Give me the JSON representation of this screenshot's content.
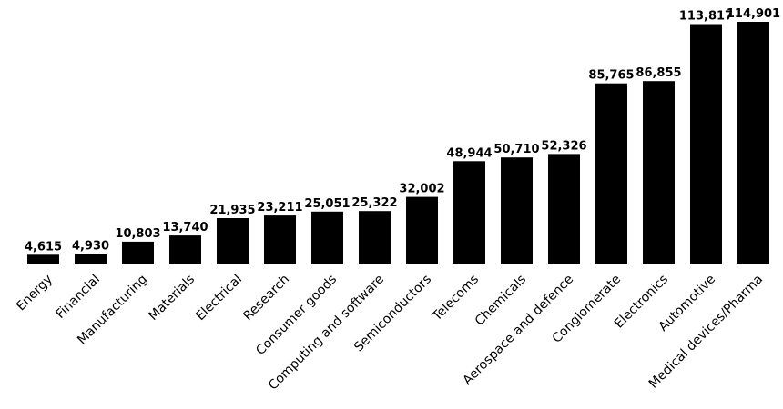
{
  "chart_data": {
    "type": "bar",
    "categories": [
      "Energy",
      "Financial",
      "Manufacturing",
      "Materials",
      "Electrical",
      "Research",
      "Consumer goods",
      "Computing and software",
      "Semiconductors",
      "Telecoms",
      "Chemicals",
      "Aerospace and defence",
      "Conglomerate",
      "Electronics",
      "Automotive",
      "Medical devices/Pharma"
    ],
    "values": [
      4615,
      4930,
      10803,
      13740,
      21935,
      23211,
      25051,
      25322,
      32002,
      48944,
      50710,
      52326,
      85765,
      86855,
      113817,
      114901
    ],
    "value_labels": [
      "4,615",
      "4,930",
      "10,803",
      "13,740",
      "21,935",
      "23,211",
      "25,051",
      "25,322",
      "32,002",
      "48,944",
      "50,710",
      "52,326",
      "85,765",
      "86,855",
      "113,817",
      "114,901"
    ],
    "title": "",
    "xlabel": "",
    "ylabel": "",
    "ylim": [
      0,
      118000
    ],
    "grid": false,
    "bar_color": "#000000"
  }
}
